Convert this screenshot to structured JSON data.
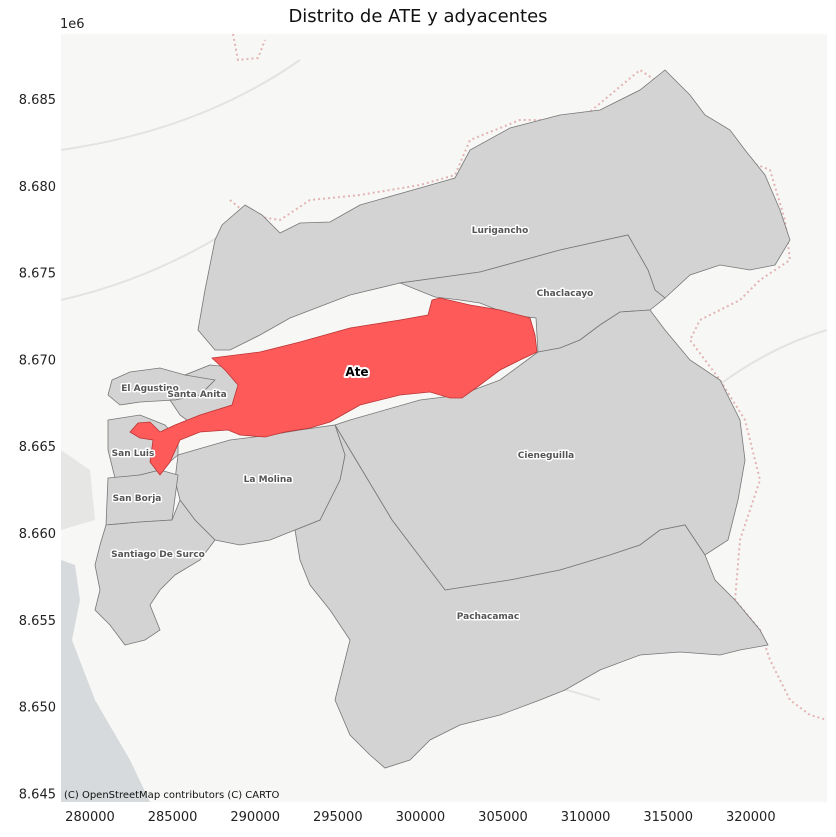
{
  "title": "Distrito de ATE y adyacentes",
  "y_offset_label": "1e6",
  "attribution": "(C) OpenStreetMap contributors (C) CARTO",
  "colors": {
    "highlight": "#ff5a5a",
    "districts": "#d3d3d3",
    "basemap": "#f7f7f5",
    "water": "#d7dadc"
  },
  "x_axis": {
    "ticks": [
      "280000",
      "285000",
      "290000",
      "295000",
      "300000",
      "305000",
      "310000",
      "315000",
      "320000"
    ]
  },
  "y_axis": {
    "ticks": [
      "8.685",
      "8.680",
      "8.675",
      "8.670",
      "8.665",
      "8.660",
      "8.655",
      "8.650",
      "8.645"
    ]
  },
  "districts": {
    "ate": "Ate",
    "lurigancho": "Lurigancho",
    "chaclacayo": "Chaclacayo",
    "cieneguilla": "Cieneguilla",
    "pachacamac": "Pachacamac",
    "la_molina": "La Molina",
    "el_agustino": "El Agustino",
    "santa_anita": "Santa Anita",
    "san_luis": "San Luis",
    "san_borja": "San Borja",
    "santiago_de_surco": "Santiago De Surco"
  }
}
